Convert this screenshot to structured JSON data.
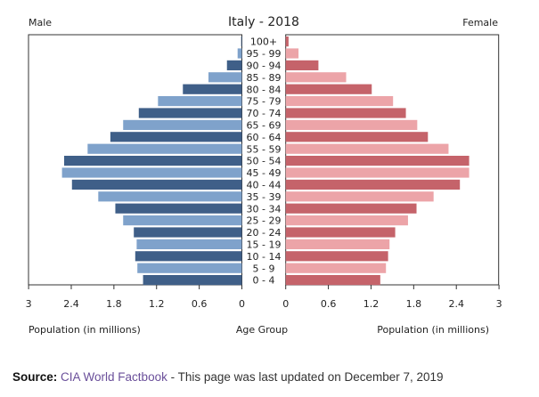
{
  "chart_data": {
    "type": "bar",
    "orientation": "horizontal-pyramid",
    "title": "Italy - 2018",
    "left_label": "Male",
    "right_label": "Female",
    "xlabel_left": "Population (in millions)",
    "xlabel_center": "Age Group",
    "xlabel_right": "Population (in millions)",
    "xlim": [
      0,
      3
    ],
    "ticks_left": [
      "3",
      "2.4",
      "1.8",
      "1.2",
      "0.6",
      "0"
    ],
    "ticks_right": [
      "0",
      "0.6",
      "1.2",
      "1.8",
      "2.4",
      "3"
    ],
    "tick_values": [
      0,
      0.6,
      1.2,
      1.8,
      2.4,
      3
    ],
    "categories": [
      "100+",
      "95 - 99",
      "90 - 94",
      "85 - 89",
      "80 - 84",
      "75 - 79",
      "70 - 74",
      "65 - 69",
      "60 - 64",
      "55 - 59",
      "50 - 54",
      "45 - 49",
      "40 - 44",
      "35 - 39",
      "30 - 34",
      "25 - 29",
      "20 - 24",
      "15 - 19",
      "10 - 14",
      "5 - 9",
      "0 - 4"
    ],
    "series": [
      {
        "name": "Male",
        "values": [
          0.01,
          0.06,
          0.21,
          0.47,
          0.83,
          1.18,
          1.45,
          1.67,
          1.85,
          2.17,
          2.5,
          2.53,
          2.39,
          2.02,
          1.78,
          1.67,
          1.52,
          1.48,
          1.5,
          1.47,
          1.39
        ],
        "colors": [
          "#3f5f88",
          "#7fa2cb"
        ]
      },
      {
        "name": "Female",
        "values": [
          0.04,
          0.18,
          0.46,
          0.85,
          1.21,
          1.51,
          1.69,
          1.85,
          2.0,
          2.29,
          2.58,
          2.58,
          2.45,
          2.08,
          1.84,
          1.72,
          1.54,
          1.46,
          1.44,
          1.41,
          1.33
        ],
        "colors": [
          "#c5636a",
          "#eca4a8"
        ]
      }
    ],
    "grid": false
  },
  "source": {
    "label": "Source:",
    "link": "CIA World Factbook",
    "text": " - This page was last updated on December 7, 2019"
  }
}
